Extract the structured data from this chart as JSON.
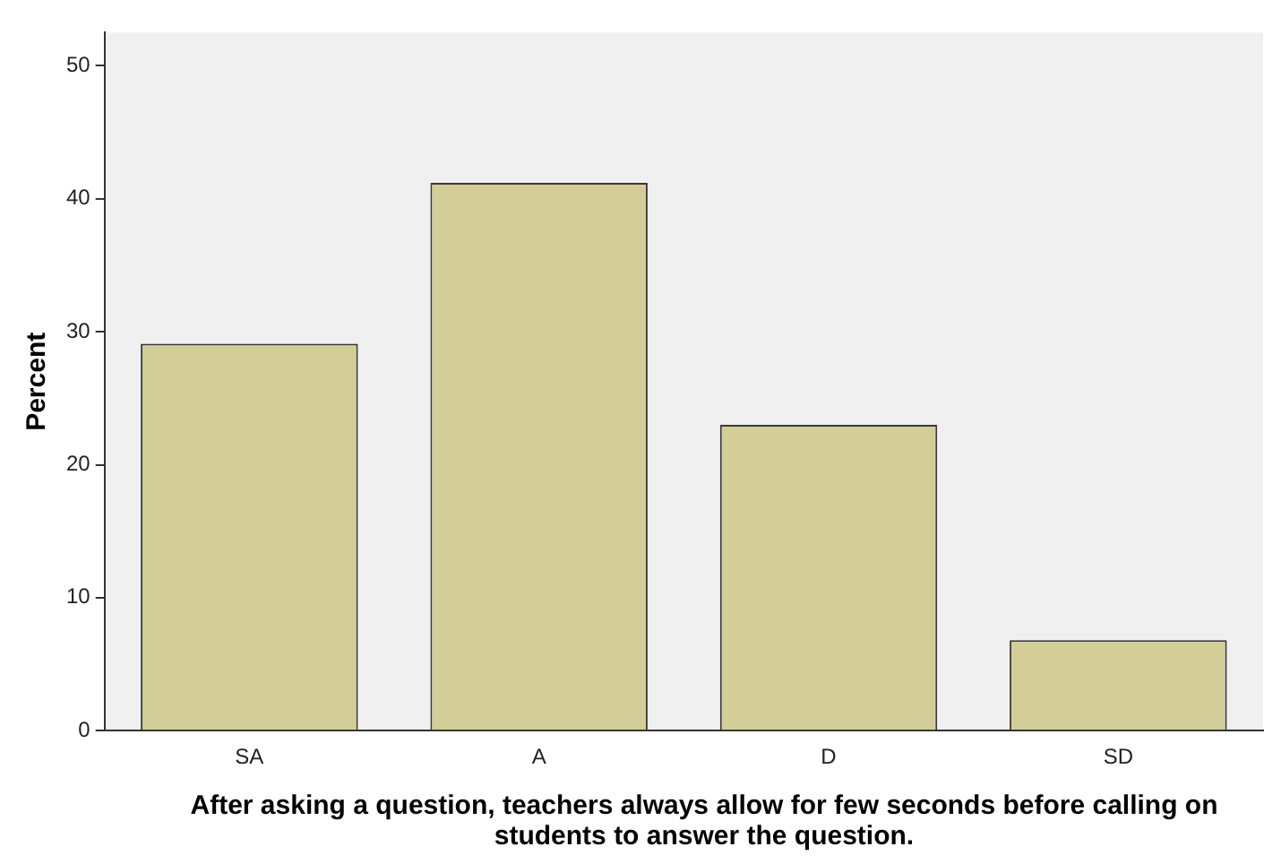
{
  "chart_data": {
    "type": "bar",
    "xlabel": "After asking a question, teachers always allow for few seconds before calling on students to answer the question.",
    "ylabel": "Percent",
    "categories": [
      "SA",
      "A",
      "D",
      "SD"
    ],
    "values": [
      29.1,
      41.2,
      23.0,
      6.8
    ],
    "color": "#d3ce97",
    "ylim": [
      0,
      52.5
    ],
    "yticks": [
      0,
      10,
      20,
      30,
      40,
      50
    ],
    "grid": false,
    "legend": false
  }
}
